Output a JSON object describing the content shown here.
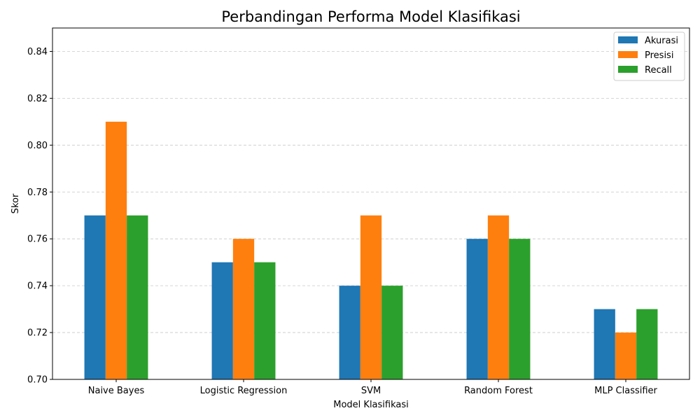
{
  "chart_data": {
    "type": "bar",
    "title": "Perbandingan Performa Model Klasifikasi",
    "xlabel": "Model Klasifikasi",
    "ylabel": "Skor",
    "ylim": [
      0.7,
      0.85
    ],
    "yticks": [
      "0.70",
      "0.72",
      "0.74",
      "0.76",
      "0.78",
      "0.80",
      "0.82",
      "0.84"
    ],
    "grid": "y-dashed",
    "legend_position": "top-right",
    "categories": [
      "Naive Bayes",
      "Logistic Regression",
      "SVM",
      "Random Forest",
      "MLP Classifier"
    ],
    "series": [
      {
        "name": "Akurasi",
        "color": "#1f77b4",
        "values": [
          0.77,
          0.75,
          0.74,
          0.76,
          0.73
        ]
      },
      {
        "name": "Presisi",
        "color": "#ff7f0e",
        "values": [
          0.81,
          0.76,
          0.77,
          0.77,
          0.72
        ]
      },
      {
        "name": "Recall",
        "color": "#2ca02c",
        "values": [
          0.77,
          0.75,
          0.74,
          0.76,
          0.73
        ]
      }
    ]
  }
}
